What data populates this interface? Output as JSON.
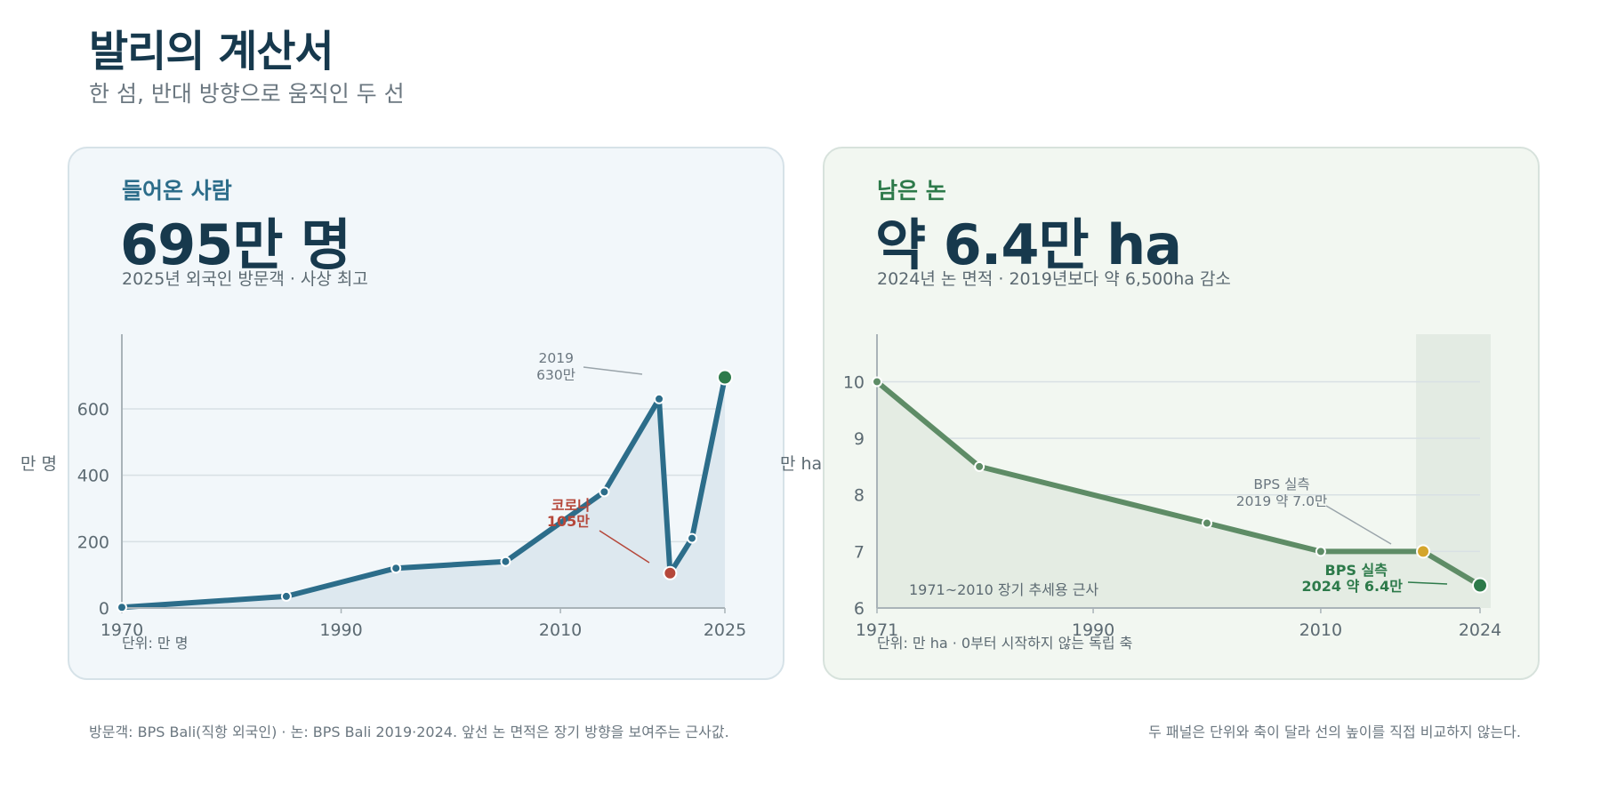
{
  "header": {
    "title": "발리의 계산서",
    "subtitle": "한 섬, 반대 방향으로 움직인 두 선"
  },
  "panels": {
    "left": {
      "eyebrow": "들어온 사람",
      "headline": "695만 명",
      "description": "2025년 외국인 방문객 · 사상 최고",
      "ylabel": "만 명",
      "unit_note": "단위: 만 명",
      "annotation_peak_year": "2019",
      "annotation_peak_value": "630만",
      "annotation_covid_label": "코로나",
      "annotation_covid_value": "105만"
    },
    "right": {
      "eyebrow": "남은 논",
      "headline": "약 6.4만 ha",
      "description": "2024년 논 면적 · 2019년보다 약 6,500ha 감소",
      "ylabel": "만 ha",
      "unit_note": "단위: 만 ha · 0부터 시작하지 않는 독립 축",
      "annotation_trend": "1971~2010 장기 추세용 근사",
      "annotation_2019_line1": "BPS 실측",
      "annotation_2019_line2": "2019  약 7.0만",
      "annotation_2024_line1": "BPS 실측",
      "annotation_2024_line2": "2024  약 6.4만"
    }
  },
  "footer": {
    "source": "방문객: BPS Bali(직항 외국인) · 논: BPS Bali 2019·2024. 앞선 논 면적은 장기 방향을 보여주는 근사값.",
    "note": "두 패널은 단위와 축이 달라 선의 높이를 직접 비교하지 않는다."
  },
  "colors": {
    "visitors_line": "#2c6d8a",
    "visitors_area": "#dde8ef",
    "covid_marker": "#b5473a",
    "latest_visitors_marker": "#2d7a4a",
    "rice_line": "#5e8c66",
    "rice_area": "#e4ece3",
    "rice_2019_marker": "#d4a52c",
    "rice_latest_marker": "#2d7a4a",
    "recent_band": "#e3ebe3"
  },
  "chart_data": [
    {
      "type": "area",
      "title": "들어온 사람",
      "ylabel": "만 명",
      "xlim": [
        1970,
        2025
      ],
      "ylim": [
        0,
        750
      ],
      "x_ticks": [
        1970,
        1990,
        2010,
        2025
      ],
      "y_ticks": [
        0,
        200,
        400,
        600
      ],
      "grid": true,
      "series": [
        {
          "x": [
            1970,
            1985,
            1995,
            2005,
            2014,
            2019,
            2020,
            2022,
            2025
          ],
          "y": [
            2,
            35,
            120,
            140,
            350,
            630,
            105,
            210,
            695
          ]
        }
      ]
    },
    {
      "type": "area",
      "title": "남은 논",
      "ylabel": "만 ha",
      "xlim": [
        1971,
        2024
      ],
      "ylim": [
        6,
        10.4
      ],
      "x_ticks": [
        1971,
        1990,
        2010,
        2024
      ],
      "y_ticks": [
        6,
        7,
        8,
        9,
        10
      ],
      "grid": true,
      "highlight_range": [
        2019,
        2024
      ],
      "series": [
        {
          "x": [
            1971,
            1980,
            2000,
            2010,
            2019,
            2024
          ],
          "y": [
            10.0,
            8.5,
            7.5,
            7.0,
            7.0,
            6.4
          ]
        }
      ]
    }
  ]
}
